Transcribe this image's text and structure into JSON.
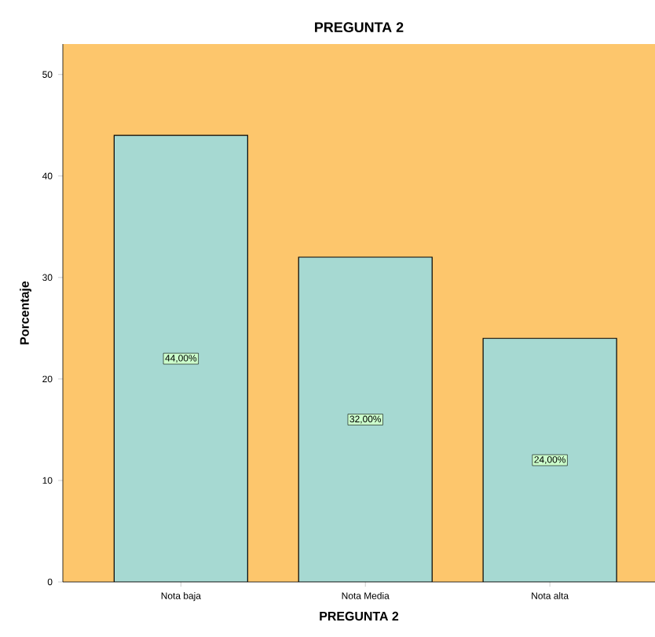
{
  "chart_data": {
    "type": "bar",
    "title": "PREGUNTA 2",
    "xlabel": "PREGUNTA 2",
    "ylabel": "Porcentaje",
    "categories": [
      "Nota baja",
      "Nota Media",
      "Nota alta"
    ],
    "values": [
      44,
      32,
      24
    ],
    "value_labels": [
      "44,00%",
      "32,00%",
      "24,00%"
    ],
    "color": "#a6d9d2",
    "ylim": [
      0,
      53
    ],
    "yticks": [
      0,
      10,
      20,
      30,
      40,
      50
    ],
    "grid": false
  }
}
